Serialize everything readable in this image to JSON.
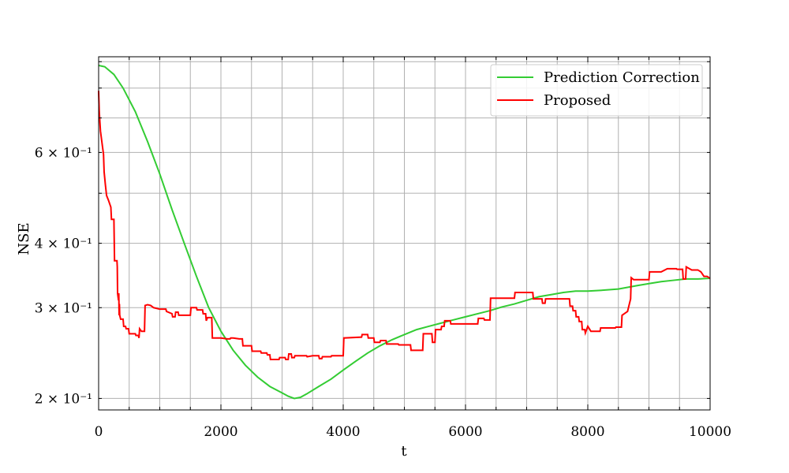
{
  "chart_data": {
    "type": "line",
    "title": "",
    "xlabel": "t",
    "ylabel": "NSE",
    "xlim": [
      0,
      10000
    ],
    "ylim": [
      0.19,
      0.92
    ],
    "yscale": "log",
    "grid": true,
    "legend_position": "top-right",
    "x_ticks": [
      0,
      2000,
      4000,
      6000,
      8000,
      10000
    ],
    "y_ticks": [
      {
        "value": 0.2,
        "label": "2 × 10⁻¹"
      },
      {
        "value": 0.3,
        "label": "3 × 10⁻¹"
      },
      {
        "value": 0.4,
        "label": "4 × 10⁻¹"
      },
      {
        "value": 0.6,
        "label": "6 × 10⁻¹"
      }
    ],
    "series": [
      {
        "name": "Prediction Correction",
        "color": "#33cc33",
        "points": [
          [
            0,
            0.885
          ],
          [
            100,
            0.88
          ],
          [
            250,
            0.85
          ],
          [
            400,
            0.8
          ],
          [
            600,
            0.72
          ],
          [
            800,
            0.63
          ],
          [
            1000,
            0.545
          ],
          [
            1200,
            0.465
          ],
          [
            1400,
            0.4
          ],
          [
            1600,
            0.345
          ],
          [
            1800,
            0.3
          ],
          [
            2000,
            0.27
          ],
          [
            2200,
            0.248
          ],
          [
            2400,
            0.232
          ],
          [
            2600,
            0.22
          ],
          [
            2800,
            0.211
          ],
          [
            3000,
            0.205
          ],
          [
            3100,
            0.202
          ],
          [
            3200,
            0.2
          ],
          [
            3300,
            0.201
          ],
          [
            3400,
            0.204
          ],
          [
            3600,
            0.211
          ],
          [
            3800,
            0.218
          ],
          [
            4000,
            0.227
          ],
          [
            4200,
            0.236
          ],
          [
            4400,
            0.245
          ],
          [
            4600,
            0.253
          ],
          [
            4800,
            0.26
          ],
          [
            5000,
            0.266
          ],
          [
            5200,
            0.272
          ],
          [
            5400,
            0.276
          ],
          [
            5600,
            0.28
          ],
          [
            5800,
            0.284
          ],
          [
            6000,
            0.288
          ],
          [
            6200,
            0.292
          ],
          [
            6400,
            0.296
          ],
          [
            6600,
            0.301
          ],
          [
            6800,
            0.305
          ],
          [
            7000,
            0.31
          ],
          [
            7200,
            0.315
          ],
          [
            7400,
            0.318
          ],
          [
            7600,
            0.321
          ],
          [
            7800,
            0.323
          ],
          [
            8000,
            0.323
          ],
          [
            8200,
            0.324
          ],
          [
            8500,
            0.326
          ],
          [
            8800,
            0.331
          ],
          [
            9000,
            0.334
          ],
          [
            9200,
            0.337
          ],
          [
            9400,
            0.339
          ],
          [
            9600,
            0.341
          ],
          [
            9800,
            0.341
          ],
          [
            10000,
            0.342
          ]
        ]
      },
      {
        "name": "Proposed",
        "color": "#ff0000",
        "points": [
          [
            0,
            0.79
          ],
          [
            10,
            0.72
          ],
          [
            30,
            0.66
          ],
          [
            60,
            0.62
          ],
          [
            80,
            0.595
          ],
          [
            90,
            0.55
          ],
          [
            100,
            0.535
          ],
          [
            110,
            0.52
          ],
          [
            130,
            0.495
          ],
          [
            160,
            0.485
          ],
          [
            200,
            0.47
          ],
          [
            210,
            0.445
          ],
          [
            250,
            0.445
          ],
          [
            260,
            0.37
          ],
          [
            300,
            0.37
          ],
          [
            305,
            0.36
          ],
          [
            310,
            0.32
          ],
          [
            325,
            0.31
          ],
          [
            330,
            0.32
          ],
          [
            335,
            0.29
          ],
          [
            340,
            0.305
          ],
          [
            345,
            0.29
          ],
          [
            360,
            0.285
          ],
          [
            400,
            0.285
          ],
          [
            410,
            0.276
          ],
          [
            440,
            0.276
          ],
          [
            450,
            0.273
          ],
          [
            490,
            0.273
          ],
          [
            500,
            0.267
          ],
          [
            600,
            0.267
          ],
          [
            610,
            0.265
          ],
          [
            650,
            0.265
          ],
          [
            660,
            0.262
          ],
          [
            670,
            0.273
          ],
          [
            700,
            0.27
          ],
          [
            750,
            0.27
          ],
          [
            760,
            0.303
          ],
          [
            800,
            0.304
          ],
          [
            850,
            0.303
          ],
          [
            900,
            0.3
          ],
          [
            1000,
            0.298
          ],
          [
            1100,
            0.298
          ],
          [
            1110,
            0.295
          ],
          [
            1200,
            0.292
          ],
          [
            1210,
            0.288
          ],
          [
            1250,
            0.288
          ],
          [
            1260,
            0.294
          ],
          [
            1300,
            0.294
          ],
          [
            1310,
            0.29
          ],
          [
            1500,
            0.29
          ],
          [
            1510,
            0.3
          ],
          [
            1600,
            0.3
          ],
          [
            1610,
            0.297
          ],
          [
            1700,
            0.297
          ],
          [
            1710,
            0.292
          ],
          [
            1750,
            0.292
          ],
          [
            1760,
            0.283
          ],
          [
            1780,
            0.287
          ],
          [
            1850,
            0.287
          ],
          [
            1860,
            0.262
          ],
          [
            2000,
            0.262
          ],
          [
            2100,
            0.261
          ],
          [
            2150,
            0.261
          ],
          [
            2160,
            0.262
          ],
          [
            2200,
            0.262
          ],
          [
            2300,
            0.261
          ],
          [
            2350,
            0.261
          ],
          [
            2360,
            0.253
          ],
          [
            2500,
            0.253
          ],
          [
            2510,
            0.247
          ],
          [
            2650,
            0.247
          ],
          [
            2660,
            0.245
          ],
          [
            2750,
            0.245
          ],
          [
            2760,
            0.243
          ],
          [
            2800,
            0.243
          ],
          [
            2810,
            0.238
          ],
          [
            2950,
            0.238
          ],
          [
            2960,
            0.24
          ],
          [
            3050,
            0.24
          ],
          [
            3060,
            0.238
          ],
          [
            3100,
            0.238
          ],
          [
            3110,
            0.244
          ],
          [
            3150,
            0.244
          ],
          [
            3160,
            0.24
          ],
          [
            3200,
            0.24
          ],
          [
            3210,
            0.242
          ],
          [
            3400,
            0.242
          ],
          [
            3410,
            0.241
          ],
          [
            3500,
            0.242
          ],
          [
            3600,
            0.242
          ],
          [
            3610,
            0.239
          ],
          [
            3650,
            0.239
          ],
          [
            3660,
            0.241
          ],
          [
            3800,
            0.241
          ],
          [
            3810,
            0.242
          ],
          [
            4000,
            0.242
          ],
          [
            4010,
            0.262
          ],
          [
            4300,
            0.263
          ],
          [
            4310,
            0.266
          ],
          [
            4400,
            0.266
          ],
          [
            4410,
            0.262
          ],
          [
            4500,
            0.262
          ],
          [
            4510,
            0.257
          ],
          [
            4600,
            0.257
          ],
          [
            4610,
            0.259
          ],
          [
            4700,
            0.259
          ],
          [
            4710,
            0.255
          ],
          [
            4900,
            0.255
          ],
          [
            4910,
            0.254
          ],
          [
            5100,
            0.254
          ],
          [
            5110,
            0.248
          ],
          [
            5300,
            0.248
          ],
          [
            5310,
            0.267
          ],
          [
            5450,
            0.267
          ],
          [
            5460,
            0.257
          ],
          [
            5500,
            0.257
          ],
          [
            5510,
            0.272
          ],
          [
            5600,
            0.272
          ],
          [
            5610,
            0.276
          ],
          [
            5650,
            0.276
          ],
          [
            5660,
            0.283
          ],
          [
            5750,
            0.283
          ],
          [
            5760,
            0.279
          ],
          [
            6000,
            0.279
          ],
          [
            6100,
            0.279
          ],
          [
            6200,
            0.279
          ],
          [
            6210,
            0.286
          ],
          [
            6300,
            0.286
          ],
          [
            6310,
            0.284
          ],
          [
            6400,
            0.284
          ],
          [
            6410,
            0.313
          ],
          [
            6800,
            0.313
          ],
          [
            6810,
            0.321
          ],
          [
            7100,
            0.321
          ],
          [
            7110,
            0.312
          ],
          [
            7250,
            0.312
          ],
          [
            7260,
            0.306
          ],
          [
            7300,
            0.306
          ],
          [
            7310,
            0.312
          ],
          [
            7500,
            0.312
          ],
          [
            7600,
            0.312
          ],
          [
            7700,
            0.312
          ],
          [
            7710,
            0.302
          ],
          [
            7750,
            0.302
          ],
          [
            7760,
            0.296
          ],
          [
            7800,
            0.296
          ],
          [
            7810,
            0.288
          ],
          [
            7850,
            0.288
          ],
          [
            7860,
            0.282
          ],
          [
            7900,
            0.282
          ],
          [
            7910,
            0.272
          ],
          [
            7950,
            0.272
          ],
          [
            7960,
            0.268
          ],
          [
            8000,
            0.276
          ],
          [
            8050,
            0.27
          ],
          [
            8150,
            0.27
          ],
          [
            8200,
            0.27
          ],
          [
            8210,
            0.274
          ],
          [
            8450,
            0.274
          ],
          [
            8460,
            0.275
          ],
          [
            8550,
            0.275
          ],
          [
            8560,
            0.29
          ],
          [
            8650,
            0.295
          ],
          [
            8700,
            0.312
          ],
          [
            8710,
            0.343
          ],
          [
            8750,
            0.34
          ],
          [
            9000,
            0.34
          ],
          [
            9010,
            0.352
          ],
          [
            9200,
            0.352
          ],
          [
            9300,
            0.357
          ],
          [
            9450,
            0.357
          ],
          [
            9460,
            0.356
          ],
          [
            9550,
            0.356
          ],
          [
            9560,
            0.341
          ],
          [
            9600,
            0.341
          ],
          [
            9610,
            0.36
          ],
          [
            9700,
            0.355
          ],
          [
            9800,
            0.355
          ],
          [
            9850,
            0.352
          ],
          [
            9900,
            0.345
          ],
          [
            9950,
            0.345
          ],
          [
            10000,
            0.342
          ]
        ]
      }
    ]
  }
}
